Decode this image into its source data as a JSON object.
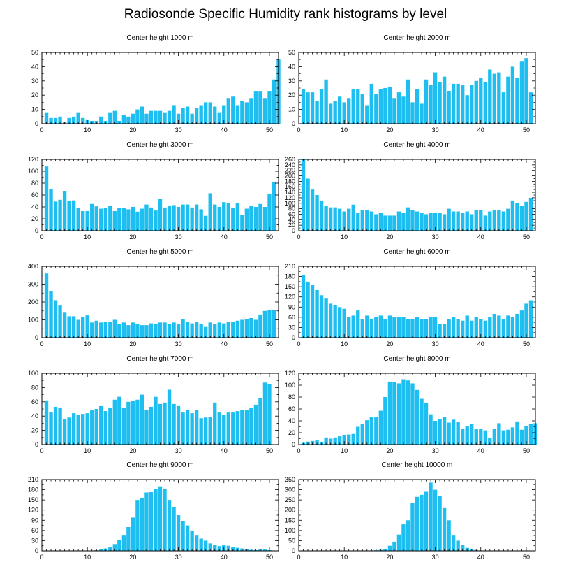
{
  "title": "Radiosonde Specific Humidity rank histograms by level",
  "colors": {
    "bar": "#1EBEF0",
    "axis": "#000000",
    "background": "#ffffff"
  },
  "chart_data": [
    {
      "type": "bar",
      "title": "Center height 1000 m",
      "xlim": [
        0,
        52
      ],
      "ylim": [
        0,
        50
      ],
      "xticks": [
        0,
        10,
        20,
        30,
        40,
        50
      ],
      "yticks": [
        0,
        10,
        20,
        30,
        40,
        50
      ],
      "x_start": 1,
      "values": [
        8,
        4,
        4,
        5,
        1,
        4,
        5,
        8,
        4,
        3,
        2,
        2,
        5,
        2,
        8,
        9,
        2,
        6,
        5,
        7,
        10,
        12,
        7,
        9,
        9,
        9,
        8,
        9,
        13,
        7,
        11,
        12,
        7,
        11,
        13,
        15,
        15,
        12,
        8,
        13,
        18,
        19,
        13,
        16,
        15,
        18,
        23,
        23,
        18,
        23,
        31,
        45
      ]
    },
    {
      "type": "bar",
      "title": "Center height 2000 m",
      "xlim": [
        0,
        52
      ],
      "ylim": [
        0,
        50
      ],
      "xticks": [
        0,
        10,
        20,
        30,
        40,
        50
      ],
      "yticks": [
        0,
        10,
        20,
        30,
        40,
        50
      ],
      "x_start": 1,
      "values": [
        24,
        22,
        22,
        16,
        24,
        31,
        14,
        16,
        19,
        15,
        18,
        24,
        24,
        21,
        13,
        28,
        21,
        24,
        25,
        26,
        18,
        22,
        19,
        31,
        15,
        24,
        14,
        31,
        27,
        36,
        29,
        33,
        23,
        28,
        28,
        27,
        20,
        27,
        30,
        32,
        29,
        38,
        35,
        36,
        22,
        33,
        40,
        32,
        44,
        46,
        22
      ]
    },
    {
      "type": "bar",
      "title": "Center height 3000 m",
      "xlim": [
        0,
        52
      ],
      "ylim": [
        0,
        120
      ],
      "xticks": [
        0,
        10,
        20,
        30,
        40,
        50
      ],
      "yticks": [
        0,
        20,
        40,
        60,
        80,
        100,
        120
      ],
      "x_start": 1,
      "values": [
        108,
        70,
        49,
        52,
        67,
        50,
        51,
        38,
        33,
        33,
        45,
        41,
        37,
        38,
        42,
        33,
        38,
        38,
        36,
        40,
        32,
        37,
        44,
        39,
        34,
        54,
        39,
        42,
        43,
        40,
        44,
        44,
        39,
        44,
        36,
        25,
        63,
        44,
        40,
        48,
        46,
        38,
        47,
        26,
        37,
        42,
        40,
        45,
        40,
        62,
        82
      ]
    },
    {
      "type": "bar",
      "title": "Center height 4000 m",
      "xlim": [
        0,
        52
      ],
      "ylim": [
        0,
        260
      ],
      "xticks": [
        0,
        10,
        20,
        30,
        40,
        50
      ],
      "yticks": [
        0,
        20,
        40,
        60,
        80,
        100,
        120,
        140,
        160,
        180,
        200,
        220,
        240,
        260
      ],
      "x_start": 1,
      "values": [
        260,
        190,
        150,
        130,
        110,
        90,
        85,
        85,
        80,
        70,
        80,
        95,
        65,
        75,
        75,
        70,
        60,
        65,
        55,
        55,
        55,
        70,
        65,
        85,
        75,
        70,
        65,
        60,
        65,
        65,
        65,
        60,
        80,
        70,
        70,
        65,
        70,
        60,
        75,
        75,
        55,
        70,
        75,
        75,
        70,
        80,
        110,
        100,
        90,
        105,
        120
      ]
    },
    {
      "type": "bar",
      "title": "Center height 5000 m",
      "xlim": [
        0,
        52
      ],
      "ylim": [
        0,
        400
      ],
      "xticks": [
        0,
        10,
        20,
        30,
        40,
        50
      ],
      "yticks": [
        0,
        100,
        200,
        300,
        400
      ],
      "x_start": 1,
      "values": [
        360,
        260,
        210,
        180,
        140,
        120,
        120,
        100,
        115,
        125,
        85,
        95,
        85,
        90,
        90,
        100,
        75,
        85,
        70,
        85,
        75,
        70,
        70,
        80,
        75,
        85,
        85,
        75,
        85,
        75,
        105,
        90,
        80,
        90,
        75,
        60,
        85,
        75,
        85,
        80,
        90,
        90,
        95,
        100,
        105,
        110,
        100,
        130,
        150,
        155,
        155
      ]
    },
    {
      "type": "bar",
      "title": "Center height 6000 m",
      "xlim": [
        0,
        52
      ],
      "ylim": [
        0,
        210
      ],
      "xticks": [
        0,
        10,
        20,
        30,
        40,
        50
      ],
      "yticks": [
        0,
        30,
        60,
        90,
        120,
        150,
        180,
        210
      ],
      "x_start": 1,
      "values": [
        185,
        165,
        155,
        140,
        125,
        115,
        100,
        95,
        90,
        85,
        60,
        65,
        80,
        55,
        65,
        55,
        60,
        65,
        55,
        65,
        60,
        60,
        60,
        55,
        55,
        60,
        55,
        55,
        60,
        60,
        40,
        40,
        55,
        60,
        55,
        50,
        65,
        50,
        60,
        55,
        50,
        60,
        70,
        65,
        55,
        65,
        60,
        70,
        80,
        100,
        110
      ]
    },
    {
      "type": "bar",
      "title": "Center height 7000 m",
      "xlim": [
        0,
        52
      ],
      "ylim": [
        0,
        100
      ],
      "xticks": [
        0,
        10,
        20,
        30,
        40,
        50
      ],
      "yticks": [
        0,
        20,
        40,
        60,
        80,
        100
      ],
      "x_start": 1,
      "values": [
        62,
        45,
        53,
        51,
        36,
        38,
        44,
        42,
        43,
        44,
        49,
        50,
        54,
        47,
        52,
        63,
        67,
        52,
        60,
        61,
        63,
        70,
        49,
        53,
        67,
        57,
        59,
        77,
        57,
        54,
        45,
        49,
        44,
        48,
        37,
        38,
        39,
        59,
        45,
        42,
        45,
        45,
        47,
        49,
        48,
        51,
        56,
        65,
        87,
        85
      ]
    },
    {
      "type": "bar",
      "title": "Center height 8000 m",
      "xlim": [
        0,
        52
      ],
      "ylim": [
        0,
        120
      ],
      "xticks": [
        0,
        10,
        20,
        30,
        40,
        50
      ],
      "yticks": [
        0,
        20,
        40,
        60,
        80,
        100,
        120
      ],
      "x_start": 1,
      "values": [
        3,
        5,
        6,
        7,
        4,
        12,
        10,
        12,
        14,
        16,
        17,
        18,
        30,
        35,
        41,
        47,
        47,
        57,
        80,
        106,
        105,
        103,
        110,
        108,
        103,
        92,
        77,
        70,
        51,
        40,
        43,
        47,
        37,
        42,
        38,
        27,
        31,
        35,
        27,
        26,
        24,
        11,
        26,
        36,
        24,
        25,
        29,
        39,
        25,
        31,
        35,
        36
      ]
    },
    {
      "type": "bar",
      "title": "Center height 9000 m",
      "xlim": [
        0,
        52
      ],
      "ylim": [
        0,
        210
      ],
      "xticks": [
        0,
        10,
        20,
        30,
        40,
        50
      ],
      "yticks": [
        0,
        30,
        60,
        90,
        120,
        150,
        180,
        210
      ],
      "x_start": 1,
      "values": [
        0,
        0,
        0,
        0,
        0,
        0,
        0,
        0,
        0,
        0,
        1,
        2,
        4,
        7,
        12,
        20,
        32,
        45,
        70,
        98,
        150,
        155,
        172,
        173,
        182,
        190,
        182,
        150,
        128,
        105,
        88,
        75,
        60,
        45,
        36,
        30,
        22,
        18,
        14,
        18,
        15,
        12,
        9,
        7,
        6,
        3,
        2,
        5,
        4,
        2,
        1
      ]
    },
    {
      "type": "bar",
      "title": "Center height 10000 m",
      "xlim": [
        0,
        52
      ],
      "ylim": [
        0,
        350
      ],
      "xticks": [
        0,
        10,
        20,
        30,
        40,
        50
      ],
      "yticks": [
        0,
        50,
        100,
        150,
        200,
        250,
        300,
        350
      ],
      "x_start": 1,
      "values": [
        0,
        0,
        0,
        0,
        0,
        0,
        0,
        0,
        0,
        0,
        0,
        0,
        0,
        0,
        0,
        2,
        3,
        5,
        10,
        25,
        45,
        80,
        130,
        150,
        235,
        265,
        275,
        290,
        335,
        300,
        270,
        210,
        150,
        75,
        50,
        30,
        15,
        8,
        4,
        2,
        1,
        1,
        1,
        1,
        1,
        1,
        1,
        1,
        1,
        1,
        1
      ]
    }
  ]
}
